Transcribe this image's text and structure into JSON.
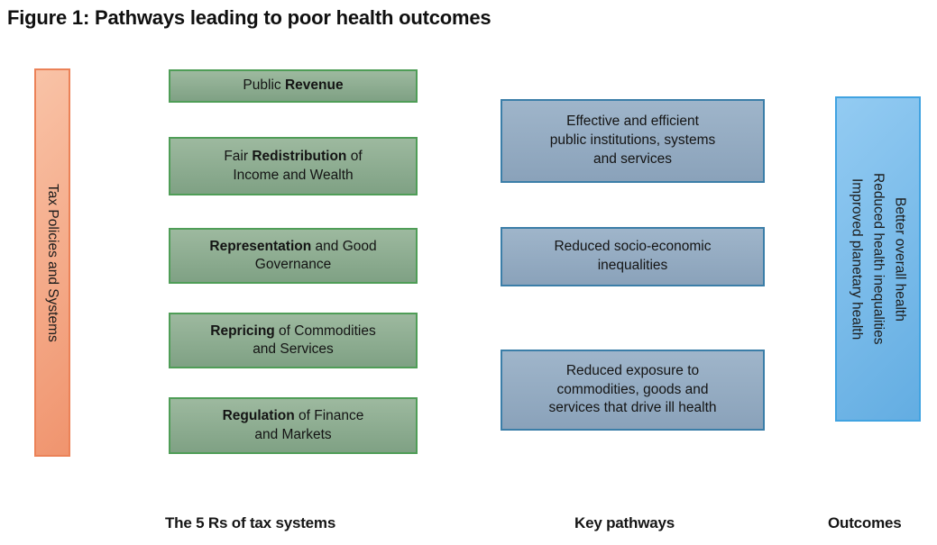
{
  "title": "Figure 1: Pathways leading to poor health outcomes",
  "left_bar": {
    "label": "Tax Policies and Systems"
  },
  "green_boxes": [
    {
      "line1": {
        "pre": "Public ",
        "bold": "Revenue",
        "post": ""
      },
      "line2": ""
    },
    {
      "line1": {
        "pre": "Fair ",
        "bold": "Redistribution",
        "post": " of"
      },
      "line2": "Income and Wealth"
    },
    {
      "line1": {
        "pre": "",
        "bold": "Representation",
        "post": " and Good"
      },
      "line2": "Governance"
    },
    {
      "line1": {
        "pre": "",
        "bold": "Repricing",
        "post": " of Commodities"
      },
      "line2": "and Services"
    },
    {
      "line1": {
        "pre": "",
        "bold": "Regulation",
        "post": " of Finance"
      },
      "line2": "and Markets"
    }
  ],
  "blue_boxes": [
    {
      "lines": [
        "Effective and efficient",
        "public institutions, systems",
        "and services"
      ]
    },
    {
      "lines": [
        "Reduced socio-economic",
        "inequalities"
      ]
    },
    {
      "lines": [
        "Reduced exposure to",
        "commodities, goods and",
        "services that drive ill health"
      ]
    }
  ],
  "right_bar": {
    "lines": [
      "Better overall health",
      "Reduced health inequalities",
      "Improved planetary health"
    ]
  },
  "footers": {
    "tax": "The 5 Rs of tax systems",
    "pathways": "Key pathways",
    "outcomes": "Outcomes"
  },
  "colors": {
    "orange_fill_light": "#f9c3a7",
    "orange_fill_dark": "#f0946e",
    "orange_border": "#eb8258",
    "green_fill_light": "#9db99f",
    "green_fill_dark": "#7fa184",
    "green_border": "#4f9d57",
    "bluegray_fill_light": "#9fb5ca",
    "bluegray_fill_dark": "#8aa2ba",
    "bluegray_border": "#3b7ea8",
    "sky_fill_light": "#93cbf2",
    "sky_fill_dark": "#63ade2",
    "sky_border": "#41a3e1",
    "text": "#141414"
  }
}
